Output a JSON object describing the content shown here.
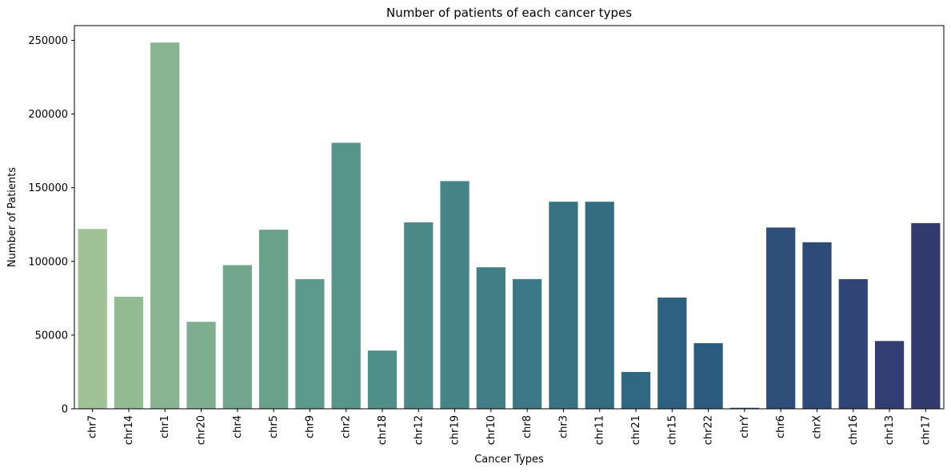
{
  "chart_data": {
    "type": "bar",
    "title": "Number of patients of each cancer types",
    "xlabel": "Cancer Types",
    "ylabel": "Number of Patients",
    "categories": [
      "chr7",
      "chr14",
      "chr1",
      "chr20",
      "chr4",
      "chr5",
      "chr9",
      "chr2",
      "chr18",
      "chr12",
      "chr19",
      "chr10",
      "chr8",
      "chr3",
      "chr11",
      "chr21",
      "chr15",
      "chr22",
      "chrY",
      "chr6",
      "chrX",
      "chr16",
      "chr13",
      "chr17"
    ],
    "values": [
      122000,
      76000,
      248500,
      59000,
      97500,
      121500,
      88000,
      180500,
      39500,
      126500,
      154500,
      96000,
      88000,
      140500,
      140500,
      25000,
      75500,
      44500,
      700,
      123000,
      113000,
      88000,
      46000,
      126000
    ],
    "ylim": [
      0,
      260000
    ],
    "yticks": [
      0,
      50000,
      100000,
      150000,
      200000,
      250000
    ],
    "ytick_labels": [
      "0",
      "50000",
      "100000",
      "150000",
      "200000",
      "250000"
    ],
    "palette": "crest",
    "bar_colors": [
      "#a0c296",
      "#93bb92",
      "#88b490",
      "#7eae8f",
      "#73a78d",
      "#69a18c",
      "#5e9a8b",
      "#57948a",
      "#4f8f89",
      "#4a8988",
      "#458487",
      "#417e86",
      "#3c7885",
      "#387383",
      "#346d82",
      "#306781",
      "#2d617f",
      "#2b5b7e",
      "#2c547c",
      "#2d4f7a",
      "#2e4a78",
      "#304475",
      "#323e72",
      "#333a6e"
    ],
    "grid": false,
    "legend": "none"
  }
}
